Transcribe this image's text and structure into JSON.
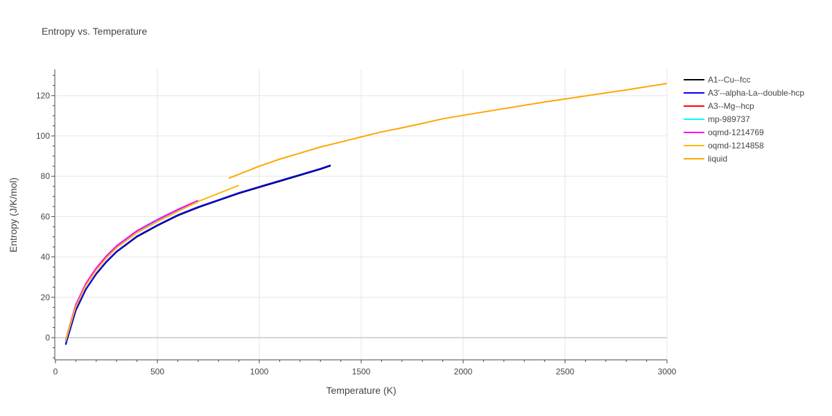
{
  "chart_data": {
    "type": "line",
    "title": "Entropy vs. Temperature",
    "xlabel": "Temperature (K)",
    "ylabel": "Entropy (J/K/mol)",
    "xlim": [
      0,
      3000
    ],
    "ylim": [
      -11,
      133
    ],
    "xticks": [
      0,
      500,
      1000,
      1500,
      2000,
      2500,
      3000
    ],
    "yticks": [
      0,
      20,
      40,
      60,
      80,
      100,
      120
    ],
    "grid": true,
    "legend_position": "right",
    "series": [
      {
        "name": "A1--Cu--fcc",
        "color": "#000000",
        "x": [
          50,
          100,
          150,
          200,
          250,
          300,
          400,
          500,
          600,
          700,
          800,
          900,
          1000,
          1100,
          1200,
          1300,
          1350
        ],
        "y": [
          -3.5,
          13.5,
          24,
          31.5,
          37.5,
          42.5,
          50,
          55.5,
          60.5,
          64.5,
          68,
          71.5,
          74.5,
          77.5,
          80.5,
          83.5,
          85.2
        ]
      },
      {
        "name": "A3'--alpha-La--double-hcp",
        "color": "#0000ff",
        "x": [
          50,
          100,
          150,
          200,
          250,
          300,
          400,
          500,
          600,
          700,
          800,
          900,
          1000,
          1100,
          1200,
          1300,
          1350
        ],
        "y": [
          -3.2,
          13.8,
          24.2,
          31.8,
          37.8,
          42.8,
          50.3,
          55.8,
          60.8,
          64.8,
          68.3,
          71.8,
          74.8,
          77.8,
          80.8,
          83.8,
          85.5
        ]
      },
      {
        "name": "A3--Mg--hcp",
        "color": "#ff0000",
        "x": [
          50,
          100,
          150,
          200,
          250,
          300,
          400,
          500,
          600,
          700
        ],
        "y": [
          -1.5,
          16,
          26.5,
          34,
          40,
          45,
          52.5,
          58,
          63,
          67.5
        ]
      },
      {
        "name": "mp-989737",
        "color": "#00ffff",
        "x": [
          50,
          100,
          150,
          200,
          250,
          300,
          400,
          500,
          600,
          700
        ],
        "y": [
          -1.8,
          15.8,
          26.3,
          33.8,
          39.8,
          44.8,
          52.3,
          57.8,
          62.8,
          67.3
        ]
      },
      {
        "name": "oqmd-1214769",
        "color": "#ff00ff",
        "x": [
          50,
          100,
          150,
          200,
          250,
          300,
          400,
          500,
          600,
          700
        ],
        "y": [
          -1.2,
          16.5,
          27,
          34.5,
          40.5,
          45.5,
          53,
          58.5,
          63.5,
          68
        ]
      },
      {
        "name": "oqmd-1214858",
        "color": "#ffb700",
        "x": [
          50,
          100,
          150,
          200,
          250,
          300,
          400,
          500,
          600,
          700,
          800,
          900
        ],
        "y": [
          -1.5,
          15.5,
          26,
          33.5,
          39.5,
          44.5,
          52,
          57.5,
          62.5,
          67.5,
          71.5,
          75.5
        ]
      },
      {
        "name": "liquid",
        "color": "#ffa500",
        "x": [
          850,
          1000,
          1100,
          1200,
          1300,
          1400,
          1500,
          1600,
          1700,
          1800,
          1900,
          2000,
          2200,
          2400,
          2600,
          2800,
          3000
        ],
        "y": [
          79,
          85,
          88.5,
          91.5,
          94.5,
          97,
          99.5,
          102,
          104,
          106.2,
          108.5,
          110.2,
          113.5,
          116.8,
          119.8,
          122.8,
          126
        ]
      }
    ]
  }
}
